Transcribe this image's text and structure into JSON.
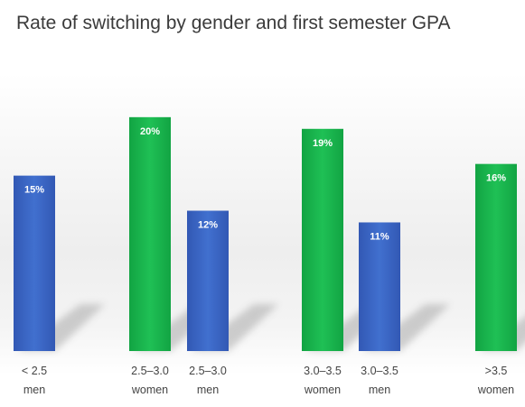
{
  "chart_data": {
    "type": "bar",
    "title": "Rate of switching by gender and first semester GPA",
    "xlabel": "",
    "ylabel": "",
    "ylim": [
      0,
      24
    ],
    "grid": false,
    "categories": [
      [
        "< 2.5",
        "men"
      ],
      [
        "2.5–3.0",
        "women"
      ],
      [
        "2.5–3.0",
        "men"
      ],
      [
        "3.0–3.5",
        "women"
      ],
      [
        "3.0–3.5",
        "men"
      ],
      [
        ">3.5",
        "women"
      ]
    ],
    "values": [
      15,
      20,
      12,
      19,
      11,
      16
    ],
    "value_labels": [
      "15%",
      "20%",
      "12%",
      "19%",
      "11%",
      "16%"
    ],
    "bar_colors": [
      "#3a63c0",
      "#19b24b",
      "#3a63c0",
      "#19b24b",
      "#3a63c0",
      "#19b24b"
    ]
  },
  "colors": {
    "women": "#19b24b",
    "men": "#3a63c0"
  }
}
